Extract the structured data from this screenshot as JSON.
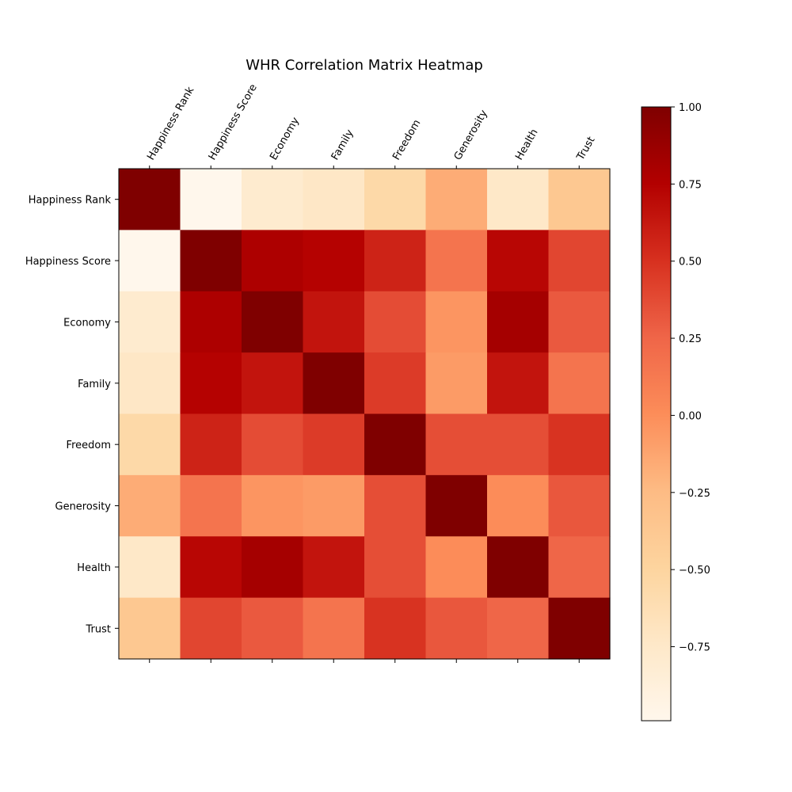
{
  "chart_data": {
    "type": "heatmap",
    "title": "WHR Correlation Matrix Heatmap",
    "xlabel": "",
    "ylabel": "",
    "row_labels": [
      "Happiness Rank",
      "Happiness Score",
      "Economy",
      "Family",
      "Freedom",
      "Generosity",
      "Health",
      "Trust"
    ],
    "col_labels": [
      "Happiness Rank",
      "Happiness Score",
      "Economy",
      "Family",
      "Freedom",
      "Generosity",
      "Health",
      "Trust"
    ],
    "values": [
      [
        1.0,
        -0.99,
        -0.79,
        -0.73,
        -0.55,
        -0.16,
        -0.74,
        -0.37
      ],
      [
        -0.99,
        1.0,
        0.78,
        0.74,
        0.57,
        0.16,
        0.72,
        0.4
      ],
      [
        -0.79,
        0.78,
        1.0,
        0.65,
        0.37,
        -0.04,
        0.82,
        0.31
      ],
      [
        -0.73,
        0.74,
        0.65,
        1.0,
        0.45,
        -0.07,
        0.65,
        0.16
      ],
      [
        -0.55,
        0.57,
        0.37,
        0.45,
        1.0,
        0.36,
        0.36,
        0.49
      ],
      [
        -0.16,
        0.16,
        -0.04,
        -0.07,
        0.36,
        1.0,
        0.01,
        0.32
      ],
      [
        -0.74,
        0.72,
        0.82,
        0.65,
        0.36,
        0.01,
        1.0,
        0.25
      ],
      [
        -0.37,
        0.4,
        0.31,
        0.16,
        0.49,
        0.32,
        0.25,
        1.0
      ]
    ],
    "colormap": [
      "#fff7ec",
      "#fee8c8",
      "#fdd49e",
      "#fdbb84",
      "#fc8d59",
      "#ef6548",
      "#d7301f",
      "#b30000",
      "#7f0000"
    ],
    "vmin": -0.99,
    "vmax": 1.0,
    "colorbar": {
      "ticks": [
        1.0,
        0.75,
        0.5,
        0.25,
        0.0,
        -0.25,
        -0.5,
        -0.75
      ],
      "tick_labels": [
        "1.00",
        "0.75",
        "0.50",
        "0.25",
        "0.00",
        "−0.25",
        "−0.50",
        "−0.75"
      ]
    },
    "grid": false,
    "x_tick_position": "top",
    "colorbar_position": "right"
  }
}
